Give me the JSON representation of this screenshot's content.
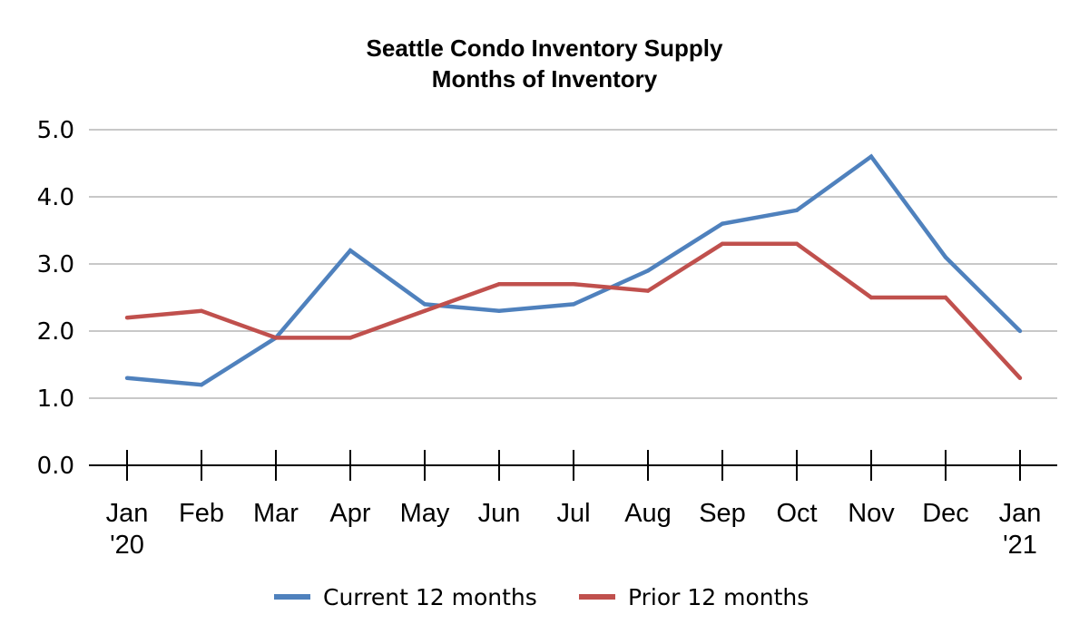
{
  "chart_data": {
    "type": "line",
    "title": "Seattle Condo Inventory Supply",
    "subtitle": "Months of Inventory",
    "xlabel": "",
    "ylabel": "",
    "categories": [
      "Jan '20",
      "Feb",
      "Mar",
      "Apr",
      "May",
      "Jun",
      "Jul",
      "Aug",
      "Sep",
      "Oct",
      "Nov",
      "Dec",
      "Jan '21"
    ],
    "x_tick_labels": [
      [
        "Jan",
        "'20"
      ],
      [
        "Feb"
      ],
      [
        "Mar"
      ],
      [
        "Apr"
      ],
      [
        "May"
      ],
      [
        "Jun"
      ],
      [
        "Jul"
      ],
      [
        "Aug"
      ],
      [
        "Sep"
      ],
      [
        "Oct"
      ],
      [
        "Nov"
      ],
      [
        "Dec"
      ],
      [
        "Jan",
        "'21"
      ]
    ],
    "y_ticks": [
      "0.0",
      "1.0",
      "2.0",
      "3.0",
      "4.0",
      "5.0"
    ],
    "ylim": [
      0,
      5
    ],
    "grid": true,
    "legend_position": "bottom",
    "series": [
      {
        "name": "Current 12 months",
        "color": "#4f81bd",
        "values": [
          1.3,
          1.2,
          1.9,
          3.2,
          2.4,
          2.3,
          2.4,
          2.9,
          3.6,
          3.8,
          4.6,
          3.1,
          2.0
        ]
      },
      {
        "name": "Prior 12 months",
        "color": "#c0504d",
        "values": [
          2.2,
          2.3,
          1.9,
          1.9,
          2.3,
          2.7,
          2.7,
          2.6,
          3.3,
          3.3,
          2.5,
          2.5,
          1.3
        ]
      }
    ],
    "colors": {
      "grid": "#c8c8c8",
      "axis": "#000000"
    }
  }
}
